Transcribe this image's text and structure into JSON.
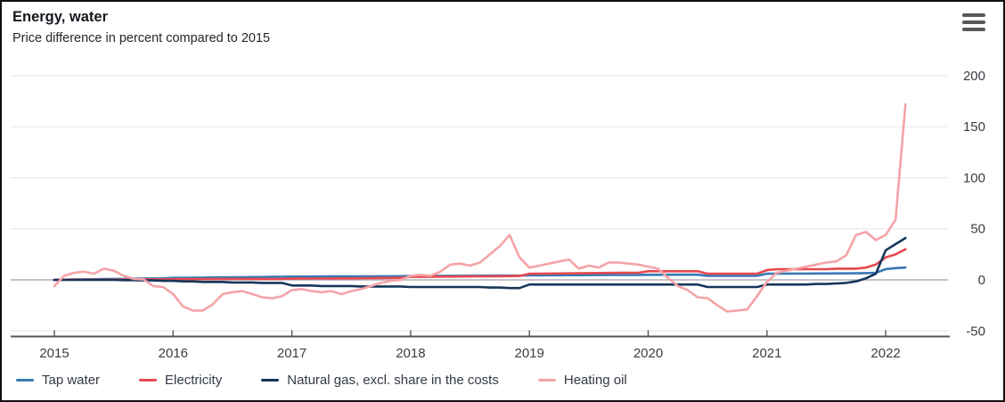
{
  "header": {
    "title": "Energy, water",
    "subtitle": "Price difference in percent compared to 2015",
    "menu_icon": "hamburger-icon"
  },
  "colors": {
    "background": "#ffffff",
    "border": "#111111",
    "grid": "#e7e7e9",
    "zero_line": "#b0b0b5",
    "axis_line": "#55555a",
    "tick_text": "#3c3c44",
    "legend_text": "#333944",
    "menu_icon": "#57575c"
  },
  "chart_data": {
    "type": "line",
    "title": "Energy, water",
    "subtitle": "Price difference in percent compared to 2015",
    "unit": "percent difference vs 2015",
    "x_interval": "monthly",
    "x_start": "2015-01",
    "x_end": "2022-03",
    "x_tick_labels": [
      "2015",
      "2016",
      "2017",
      "2018",
      "2019",
      "2020",
      "2021",
      "2022"
    ],
    "y_ticks": [
      -50,
      0,
      50,
      100,
      150,
      200
    ],
    "ylim": [
      -50,
      215
    ],
    "grid": "horizontal",
    "y_axis_position": "right",
    "legend_position": "bottom",
    "series": [
      {
        "name": "Tap water",
        "color": "#3779b5",
        "values": [
          0,
          0.2,
          0.4,
          0.5,
          0.6,
          0.8,
          1,
          1,
          1.2,
          1.3,
          1.4,
          1.5,
          2,
          2,
          2.2,
          2.2,
          2.4,
          2.4,
          2.6,
          2.6,
          2.8,
          2.8,
          3,
          3,
          3.2,
          3.2,
          3.3,
          3.3,
          3.4,
          3.4,
          3.5,
          3.5,
          3.5,
          3.6,
          3.6,
          3.6,
          3.8,
          3.8,
          3.9,
          3.9,
          4,
          4,
          4,
          4.1,
          4.1,
          4.2,
          4.2,
          4.2,
          4.4,
          4.4,
          4.5,
          4.5,
          4.6,
          4.6,
          4.7,
          4.7,
          4.8,
          4.8,
          4.9,
          4.9,
          5,
          5,
          5.1,
          5.1,
          5.1,
          5.1,
          4,
          4,
          4,
          4,
          4,
          4,
          6,
          6.1,
          6.1,
          6.2,
          6.2,
          6.3,
          6.3,
          6.4,
          6.4,
          6.5,
          6.6,
          7,
          10.5,
          11.5,
          12
        ]
      },
      {
        "name": "Electricity",
        "color": "#e6494f",
        "values": [
          0,
          0.2,
          0.3,
          0.3,
          0.3,
          0.3,
          0.4,
          0.4,
          0.4,
          0.5,
          0.5,
          0.5,
          0.7,
          0.7,
          0.8,
          0.8,
          0.8,
          0.9,
          0.9,
          0.9,
          1,
          1,
          1,
          1,
          1.2,
          1.2,
          1.3,
          1.3,
          1.4,
          1.5,
          1.5,
          1.6,
          1.7,
          1.8,
          1.9,
          2,
          3,
          3,
          3.1,
          3.2,
          3.2,
          3.3,
          3.4,
          3.5,
          3.5,
          3.6,
          3.7,
          3.8,
          6,
          6.1,
          6.2,
          6.3,
          6.4,
          6.5,
          6.6,
          6.7,
          6.8,
          6.9,
          7,
          7,
          8.5,
          8.5,
          8.5,
          8.5,
          8.5,
          8.5,
          6,
          6,
          6,
          6,
          6,
          6,
          9.5,
          10.5,
          10.5,
          10.5,
          10.5,
          10.5,
          10.5,
          11,
          11,
          11,
          12,
          15,
          22,
          25,
          30
        ]
      },
      {
        "name": "Natural gas, excl. share in the costs",
        "color": "#17365a",
        "values": [
          0,
          0,
          0,
          0,
          0,
          0,
          0,
          -0.3,
          -0.3,
          -0.5,
          -0.5,
          -1,
          -1,
          -1.5,
          -1.5,
          -2,
          -2,
          -2,
          -2.5,
          -2.5,
          -2.5,
          -3,
          -3,
          -3,
          -5.5,
          -5.5,
          -5.5,
          -6,
          -6,
          -6,
          -6,
          -6.5,
          -6.5,
          -6.5,
          -6.5,
          -6.5,
          -7,
          -7,
          -7,
          -7,
          -7,
          -7,
          -7,
          -7,
          -7.5,
          -7.5,
          -8,
          -8,
          -4.5,
          -4.5,
          -4.5,
          -4.5,
          -4.5,
          -4.5,
          -4.5,
          -4.5,
          -4.5,
          -4.5,
          -4.5,
          -4.5,
          -4.5,
          -4.5,
          -4.5,
          -4.5,
          -4.5,
          -4.5,
          -7,
          -7,
          -7,
          -7,
          -7,
          -7,
          -4.5,
          -4.5,
          -4.5,
          -4.5,
          -4.5,
          -4,
          -4,
          -3.5,
          -3,
          -1.5,
          1.5,
          6,
          29,
          35,
          41
        ]
      },
      {
        "name": "Heating oil",
        "color": "#f5a3a7",
        "values": [
          -6,
          4,
          7,
          8,
          6,
          11,
          9,
          4,
          1,
          0.5,
          -6,
          -7,
          -14,
          -26,
          -30,
          -30,
          -24,
          -14,
          -12,
          -11,
          -14,
          -17,
          -18,
          -16,
          -10,
          -9,
          -11,
          -12,
          -11,
          -14,
          -11,
          -9,
          -6,
          -3,
          -1,
          0,
          4,
          5,
          4,
          8,
          15,
          16,
          14,
          17,
          25,
          33,
          44,
          22,
          12,
          14,
          16,
          18,
          20,
          11,
          14,
          12,
          17,
          17,
          16,
          15,
          13,
          11,
          2,
          -6,
          -10,
          -17,
          -18,
          -25,
          -31,
          -30,
          -29,
          -16,
          -2,
          7,
          9,
          11,
          13,
          15,
          17,
          18,
          24,
          44,
          47,
          39,
          44,
          59,
          172
        ]
      }
    ]
  },
  "legend": {
    "items": [
      {
        "label": "Tap water",
        "color": "#3779b5"
      },
      {
        "label": "Electricity",
        "color": "#e6494f"
      },
      {
        "label": "Natural gas, excl. share in the costs",
        "color": "#17365a"
      },
      {
        "label": "Heating oil",
        "color": "#f5a3a7"
      }
    ]
  }
}
